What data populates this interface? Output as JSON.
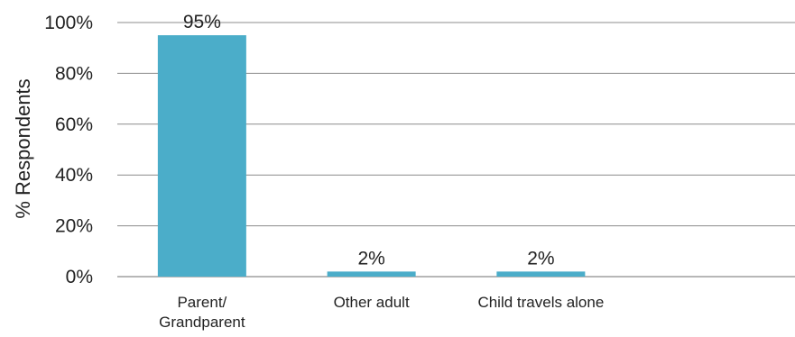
{
  "chart_data": {
    "type": "bar",
    "categories": [
      "Parent/\nGrandparent",
      "Other adult",
      "Child travels alone",
      ""
    ],
    "values": [
      95,
      2,
      2,
      null
    ],
    "data_labels": [
      "95%",
      "2%",
      "2%",
      ""
    ],
    "ylabel": "% Respondents",
    "xlabel": "",
    "title": "",
    "ylim": [
      0,
      100
    ],
    "yticks": [
      0,
      20,
      40,
      60,
      80,
      100
    ],
    "ytick_labels": [
      "0%",
      "20%",
      "40%",
      "60%",
      "80%",
      "100%"
    ],
    "grid": "horizontal",
    "legend": "none",
    "bar_color": "#4badc9"
  }
}
